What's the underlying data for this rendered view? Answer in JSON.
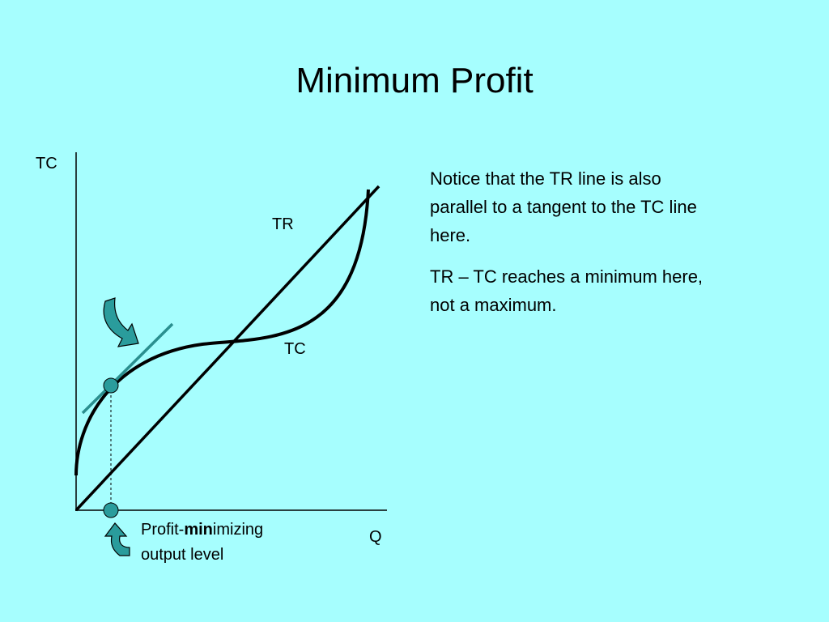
{
  "title": "Minimum Profit",
  "axes": {
    "y_label": "TC",
    "x_label": "Q"
  },
  "curves": {
    "tr_label": "TR",
    "tc_label": "TC"
  },
  "annotation": {
    "line1": [
      "Profit-",
      "min",
      "imizing"
    ],
    "line2": "output level"
  },
  "notes": [
    [
      "Notice that the TR line is also",
      "parallel to a tangent to the TC line",
      "here."
    ],
    [
      "TR – TC reaches a minimum here,",
      "not a maximum."
    ]
  ]
}
